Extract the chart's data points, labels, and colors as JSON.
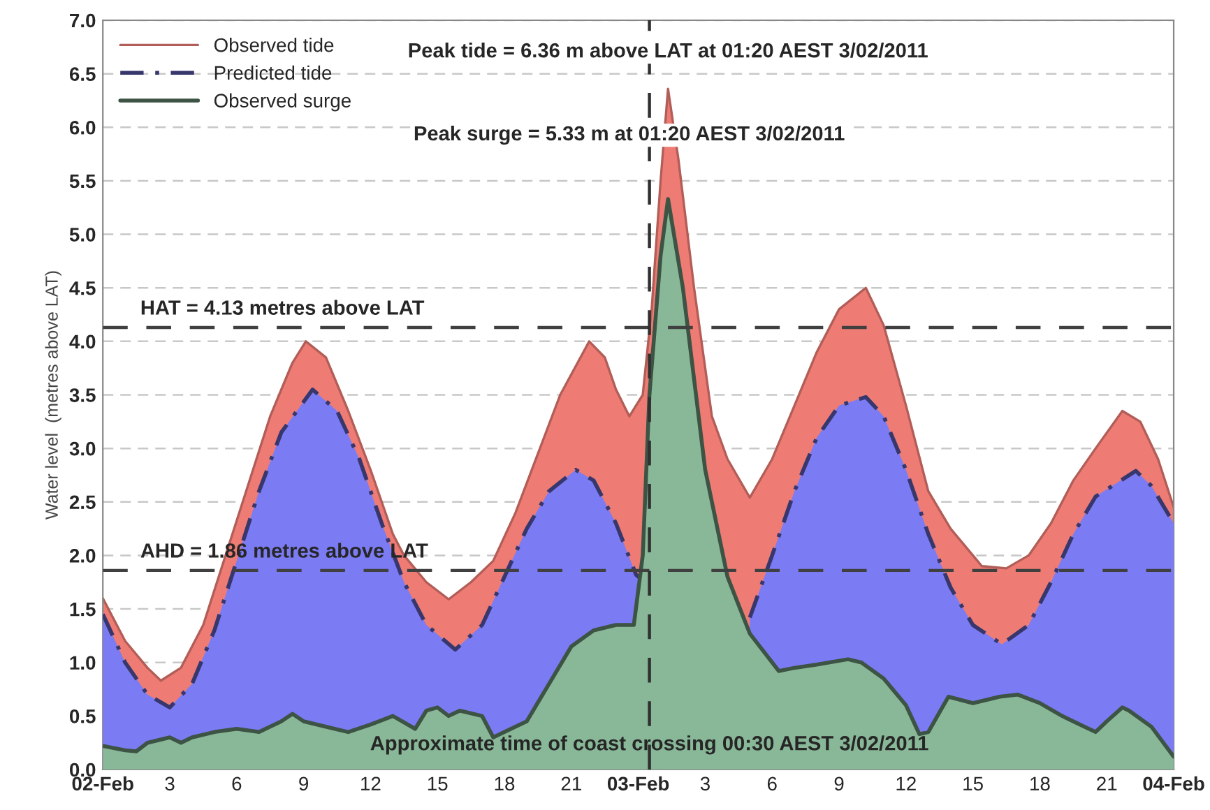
{
  "chart_data": {
    "type": "area",
    "ylabel": "Water level  (metres above LAT)",
    "xlim": [
      "2011-02-02T00:00",
      "2011-02-04T00:00"
    ],
    "ylim": [
      0,
      7
    ],
    "xticks": [
      {
        "value": "2011-02-02T00:00",
        "label": "02-Feb"
      },
      {
        "value": "2011-02-02T03:00",
        "label": "3"
      },
      {
        "value": "2011-02-02T06:00",
        "label": "6"
      },
      {
        "value": "2011-02-02T09:00",
        "label": "9"
      },
      {
        "value": "2011-02-02T12:00",
        "label": "12"
      },
      {
        "value": "2011-02-02T15:00",
        "label": "15"
      },
      {
        "value": "2011-02-02T18:00",
        "label": "18"
      },
      {
        "value": "2011-02-02T21:00",
        "label": "21"
      },
      {
        "value": "2011-02-03T00:00",
        "label": "03-Feb"
      },
      {
        "value": "2011-02-03T03:00",
        "label": "3"
      },
      {
        "value": "2011-02-03T06:00",
        "label": "6"
      },
      {
        "value": "2011-02-03T09:00",
        "label": "9"
      },
      {
        "value": "2011-02-03T12:00",
        "label": "12"
      },
      {
        "value": "2011-02-03T15:00",
        "label": "15"
      },
      {
        "value": "2011-02-03T18:00",
        "label": "18"
      },
      {
        "value": "2011-02-03T21:00",
        "label": "21"
      },
      {
        "value": "2011-02-04T00:00",
        "label": "04-Feb"
      }
    ],
    "yticks": [
      {
        "value": 0,
        "label": "0.0"
      },
      0.5,
      {
        "value": 1,
        "label": "1.0"
      },
      1.5,
      {
        "value": 2,
        "label": "2.0"
      },
      2.5,
      {
        "value": 3,
        "label": "3.0"
      },
      3.5,
      {
        "value": 4,
        "label": "4.0"
      },
      4.5,
      {
        "value": 5,
        "label": "5.0"
      },
      5.5,
      {
        "value": 6,
        "label": "6.0"
      },
      6.5,
      {
        "value": 7,
        "label": "7.0"
      }
    ],
    "grid": "y",
    "legend": "top left",
    "series": [
      {
        "name": "Observed tide",
        "color": "#ee7c74",
        "line_style": "solid",
        "x": [
          "2011-02-02T00:00",
          "2011-02-02T01:00",
          "2011-02-02T02:00",
          "2011-02-02T02:36",
          "2011-02-02T03:30",
          "2011-02-02T04:30",
          "2011-02-02T05:30",
          "2011-02-02T06:30",
          "2011-02-02T07:30",
          "2011-02-02T08:30",
          "2011-02-02T09:06",
          "2011-02-02T10:00",
          "2011-02-02T11:00",
          "2011-02-02T12:00",
          "2011-02-02T13:00",
          "2011-02-02T13:30",
          "2011-02-02T14:30",
          "2011-02-02T15:30",
          "2011-02-02T16:30",
          "2011-02-02T17:30",
          "2011-02-02T18:30",
          "2011-02-02T19:30",
          "2011-02-02T20:30",
          "2011-02-02T21:48",
          "2011-02-02T22:30",
          "2011-02-02T23:00",
          "2011-02-02T23:36",
          "2011-02-03T00:12",
          "2011-02-03T00:36",
          "2011-02-03T01:00",
          "2011-02-03T01:20",
          "2011-02-03T01:48",
          "2011-02-03T02:30",
          "2011-02-03T03:18",
          "2011-02-03T04:00",
          "2011-02-03T05:00",
          "2011-02-03T06:00",
          "2011-02-03T07:00",
          "2011-02-03T08:00",
          "2011-02-03T09:00",
          "2011-02-03T10:12",
          "2011-02-03T11:00",
          "2011-02-03T12:00",
          "2011-02-03T13:00",
          "2011-02-03T14:00",
          "2011-02-03T15:00",
          "2011-02-03T15:24",
          "2011-02-03T16:30",
          "2011-02-03T17:30",
          "2011-02-03T18:30",
          "2011-02-03T19:30",
          "2011-02-03T20:30",
          "2011-02-03T21:42",
          "2011-02-03T22:30",
          "2011-02-03T23:18",
          "2011-02-04T00:00"
        ],
        "values": [
          1.6,
          1.2,
          0.95,
          0.83,
          0.95,
          1.35,
          2.0,
          2.65,
          3.3,
          3.8,
          4.0,
          3.85,
          3.35,
          2.8,
          2.2,
          2.0,
          1.75,
          1.59,
          1.75,
          1.95,
          2.4,
          2.95,
          3.5,
          4.0,
          3.85,
          3.55,
          3.3,
          3.5,
          4.3,
          5.5,
          6.36,
          5.7,
          4.5,
          3.3,
          2.9,
          2.54,
          2.9,
          3.4,
          3.9,
          4.3,
          4.5,
          4.15,
          3.4,
          2.6,
          2.25,
          2.0,
          1.9,
          1.88,
          2.0,
          2.3,
          2.7,
          3.0,
          3.35,
          3.25,
          2.9,
          2.45
        ]
      },
      {
        "name": "Predicted tide",
        "color": "#7b7bf3",
        "line_style": "dashed",
        "x": [
          "2011-02-02T00:00",
          "2011-02-02T01:00",
          "2011-02-02T02:00",
          "2011-02-02T03:00",
          "2011-02-02T04:00",
          "2011-02-02T05:00",
          "2011-02-02T06:00",
          "2011-02-02T07:00",
          "2011-02-02T08:00",
          "2011-02-02T09:24",
          "2011-02-02T10:30",
          "2011-02-02T11:30",
          "2011-02-02T12:30",
          "2011-02-02T13:30",
          "2011-02-02T14:30",
          "2011-02-02T15:48",
          "2011-02-02T17:00",
          "2011-02-02T18:00",
          "2011-02-02T19:00",
          "2011-02-02T20:00",
          "2011-02-02T21:12",
          "2011-02-02T22:00",
          "2011-02-02T23:00",
          "2011-02-02T23:54",
          "2011-02-03T00:18",
          "2011-02-03T04:48",
          "2011-02-03T05:00",
          "2011-02-03T06:00",
          "2011-02-03T07:00",
          "2011-02-03T08:00",
          "2011-02-03T09:00",
          "2011-02-03T10:12",
          "2011-02-03T11:00",
          "2011-02-03T12:00",
          "2011-02-03T13:00",
          "2011-02-03T14:00",
          "2011-02-03T15:00",
          "2011-02-03T16:18",
          "2011-02-03T17:30",
          "2011-02-03T18:30",
          "2011-02-03T19:30",
          "2011-02-03T20:30",
          "2011-02-03T22:18",
          "2011-02-03T23:00",
          "2011-02-04T00:00"
        ],
        "values": [
          1.45,
          1.0,
          0.7,
          0.58,
          0.8,
          1.3,
          1.95,
          2.6,
          3.15,
          3.55,
          3.35,
          2.9,
          2.3,
          1.75,
          1.35,
          1.12,
          1.35,
          1.8,
          2.25,
          2.6,
          2.8,
          2.7,
          2.3,
          1.82,
          1.75,
          null,
          1.42,
          2.0,
          2.6,
          3.1,
          3.4,
          3.48,
          3.3,
          2.8,
          2.2,
          1.7,
          1.35,
          1.17,
          1.35,
          1.75,
          2.2,
          2.55,
          2.79,
          2.65,
          2.3
        ]
      },
      {
        "name": "Observed surge",
        "color": "#88b898",
        "line_style": "solid",
        "x": [
          "2011-02-02T00:00",
          "2011-02-02T01:00",
          "2011-02-02T01:30",
          "2011-02-02T02:00",
          "2011-02-02T03:00",
          "2011-02-02T03:30",
          "2011-02-02T04:00",
          "2011-02-02T05:00",
          "2011-02-02T06:00",
          "2011-02-02T07:00",
          "2011-02-02T08:00",
          "2011-02-02T08:30",
          "2011-02-02T09:00",
          "2011-02-02T10:00",
          "2011-02-02T11:00",
          "2011-02-02T12:00",
          "2011-02-02T13:00",
          "2011-02-02T14:00",
          "2011-02-02T14:30",
          "2011-02-02T15:00",
          "2011-02-02T15:30",
          "2011-02-02T16:00",
          "2011-02-02T17:00",
          "2011-02-02T17:30",
          "2011-02-02T18:00",
          "2011-02-02T19:00",
          "2011-02-02T20:00",
          "2011-02-02T21:00",
          "2011-02-02T22:00",
          "2011-02-02T23:00",
          "2011-02-02T23:48",
          "2011-02-03T00:12",
          "2011-02-03T00:30",
          "2011-02-03T01:00",
          "2011-02-03T01:20",
          "2011-02-03T02:00",
          "2011-02-03T03:00",
          "2011-02-03T04:00",
          "2011-02-03T05:00",
          "2011-02-03T06:18",
          "2011-02-03T07:00",
          "2011-02-03T08:00",
          "2011-02-03T09:24",
          "2011-02-03T10:00",
          "2011-02-03T11:00",
          "2011-02-03T12:00",
          "2011-02-03T12:36",
          "2011-02-03T13:00",
          "2011-02-03T13:54",
          "2011-02-03T15:00",
          "2011-02-03T16:12",
          "2011-02-03T17:00",
          "2011-02-03T18:00",
          "2011-02-03T19:00",
          "2011-02-03T20:00",
          "2011-02-03T20:30",
          "2011-02-03T21:00",
          "2011-02-03T21:42",
          "2011-02-03T22:00",
          "2011-02-03T23:00",
          "2011-02-04T00:00"
        ],
        "values": [
          0.22,
          0.18,
          0.17,
          0.25,
          0.3,
          0.25,
          0.3,
          0.35,
          0.38,
          0.35,
          0.45,
          0.52,
          0.45,
          0.4,
          0.35,
          0.42,
          0.5,
          0.38,
          0.55,
          0.58,
          0.5,
          0.55,
          0.5,
          0.3,
          0.35,
          0.45,
          0.8,
          1.15,
          1.3,
          1.35,
          1.35,
          2.0,
          3.5,
          4.8,
          5.33,
          4.5,
          2.8,
          1.8,
          1.27,
          0.92,
          0.95,
          0.98,
          1.03,
          1.0,
          0.85,
          0.6,
          0.33,
          0.35,
          0.68,
          0.62,
          0.68,
          0.7,
          0.62,
          0.5,
          0.4,
          0.35,
          0.45,
          0.58,
          0.55,
          0.4,
          0.12
        ]
      }
    ],
    "ref_lines": [
      {
        "axis": "y",
        "value": 4.13,
        "label": "HAT = 4.13 metres above LAT",
        "color": "#404040",
        "line_style": "dashed"
      },
      {
        "axis": "y",
        "value": 1.86,
        "label": "AHD = 1.86 metres above LAT",
        "color": "#404040",
        "line_style": "dashed"
      },
      {
        "axis": "x",
        "value": "2011-02-03T00:30",
        "label": "Approximate time of coast crossing 00:30 AEST 3/02/2011",
        "color": "#303030",
        "line_style": "dashed"
      }
    ],
    "annotations": [
      {
        "text": "Peak tide = 6.36 m above LAT at 01:20 AEST 3/02/2011",
        "x": "2011-02-03T01:20",
        "y": 6.36
      },
      {
        "text": "Peak surge = 5.33 m at 01:20 AEST 3/02/2011",
        "x": "2011-02-03T01:20",
        "y": 5.33
      }
    ]
  }
}
